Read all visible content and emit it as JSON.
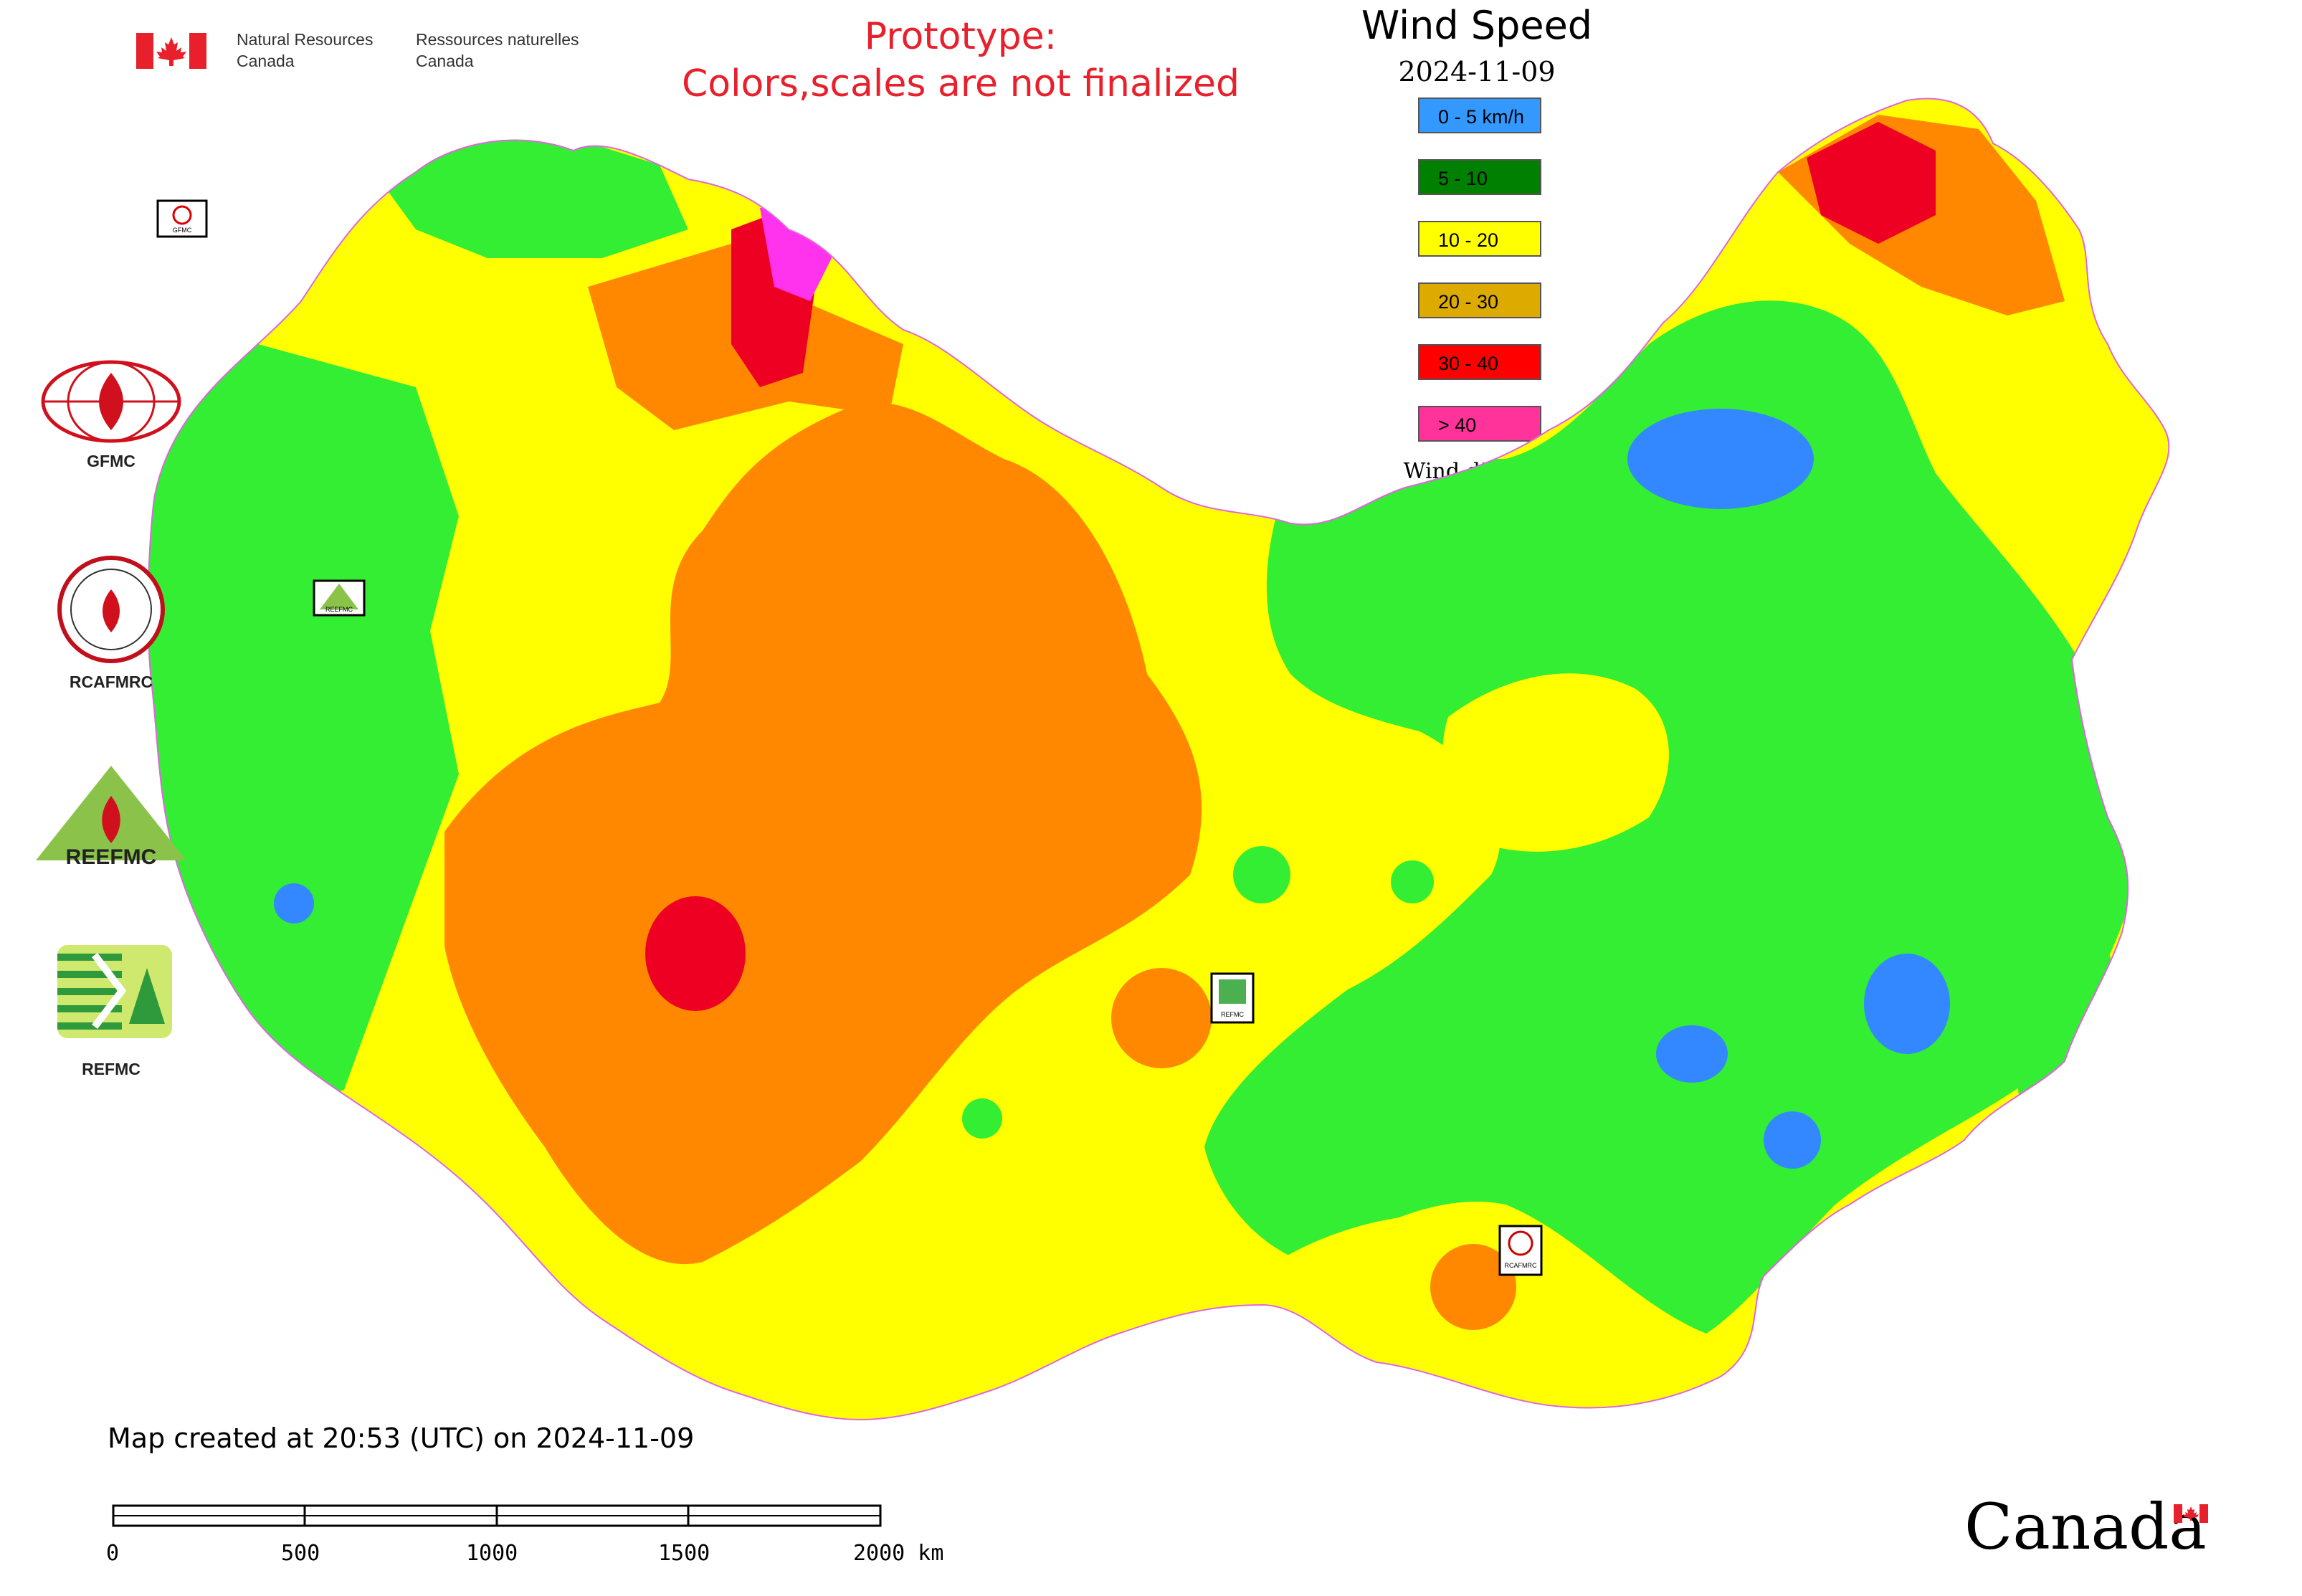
{
  "header": {
    "agency_en": [
      "Natural Resources",
      "Canada"
    ],
    "agency_fr": [
      "Ressources naturelles",
      "Canada"
    ],
    "prototype_notice": [
      "Prototype:",
      "Colors,scales are not finalized"
    ]
  },
  "legend": {
    "title": "Wind Speed",
    "date": "2024-11-09",
    "items": [
      {
        "label": "0 - 5 km/h",
        "color": "#3399ff"
      },
      {
        "label": "5 - 10",
        "color": "#008000"
      },
      {
        "label": "10 - 20",
        "color": "#ffff00"
      },
      {
        "label": "20 - 30",
        "color": "#ddaa00"
      },
      {
        "label": "30 - 40",
        "color": "#ff0000"
      },
      {
        "label": "> 40",
        "color": "#ff3399"
      }
    ],
    "wind_direction_label": "Wind direction"
  },
  "map_colors": {
    "green": "#33ee33",
    "yellow": "#ffff00",
    "orange": "#ff8800",
    "red": "#ee0022",
    "blue": "#3388ff",
    "magenta": "#ff33ee"
  },
  "logos": [
    {
      "name": "GFMC",
      "icon": "fire-circle-icon"
    },
    {
      "name": "RCAFMRC",
      "icon": "seal-icon"
    },
    {
      "name": "REEFMC",
      "icon": "triangle-fire-icon"
    },
    {
      "name": "REFMC",
      "icon": "sigma-icon"
    }
  ],
  "map_markers": [
    "GFMC",
    "REEFMC",
    "REFMC",
    "RCAFMRC"
  ],
  "footer": {
    "created": "Map created at 20:53 (UTC) on 2024-11-09",
    "scale_labels": [
      "0",
      "500",
      "1000",
      "1500",
      "2000 km"
    ],
    "wordmark": "Canada"
  }
}
